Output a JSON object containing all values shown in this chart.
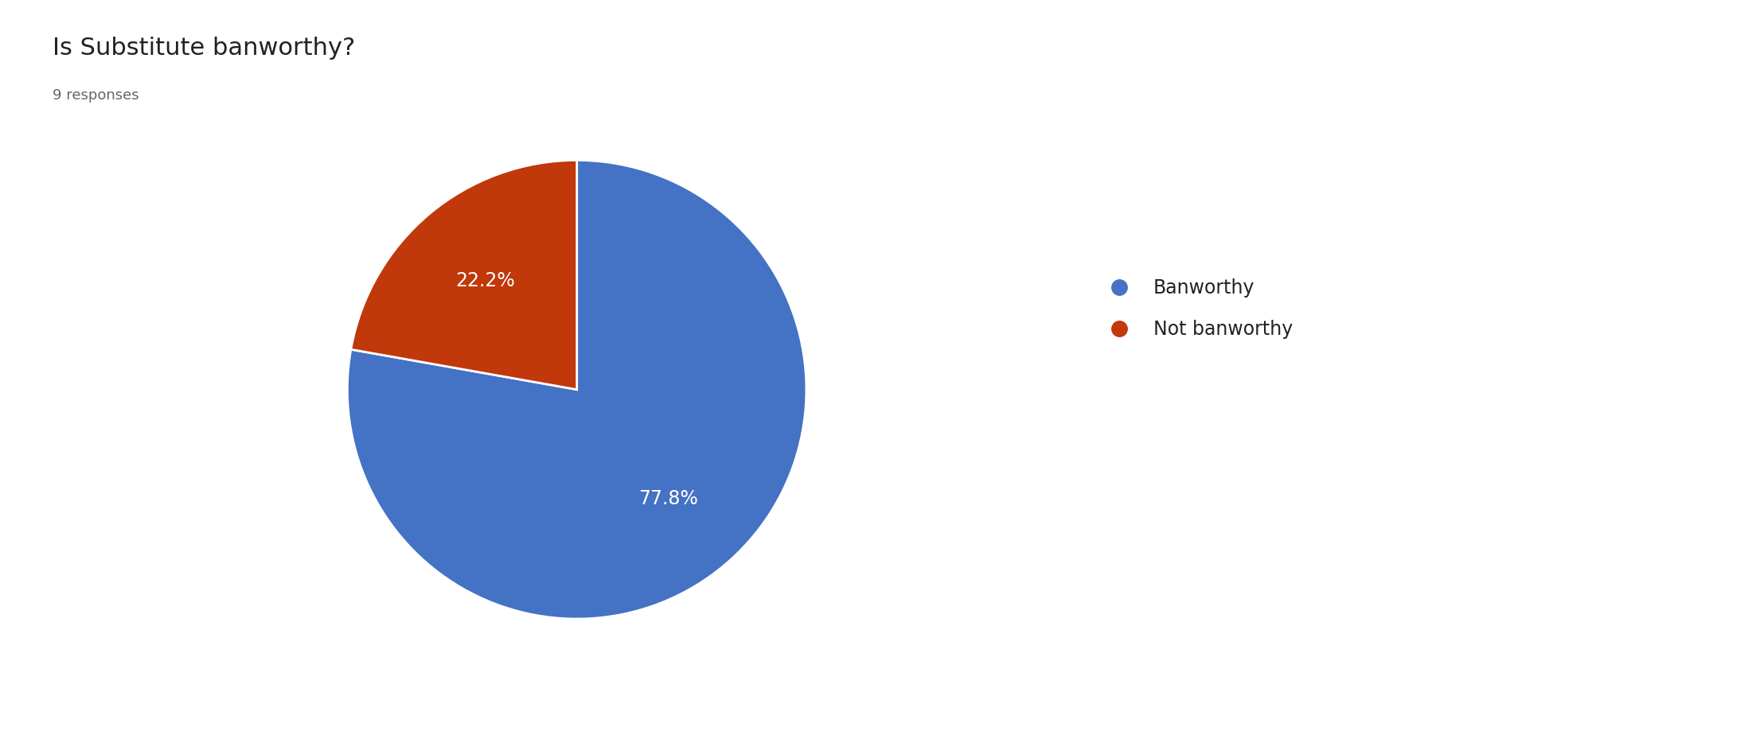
{
  "title": "Is Substitute banworthy?",
  "subtitle": "9 responses",
  "labels": [
    "Banworthy",
    "Not banworthy"
  ],
  "values": [
    77.8,
    22.2
  ],
  "colors": [
    "#4472C4",
    "#C1380A"
  ],
  "background_color": "#ffffff",
  "title_fontsize": 22,
  "subtitle_fontsize": 13,
  "legend_fontsize": 17,
  "autopct_fontsize": 17,
  "startangle": 90,
  "counterclock": false
}
